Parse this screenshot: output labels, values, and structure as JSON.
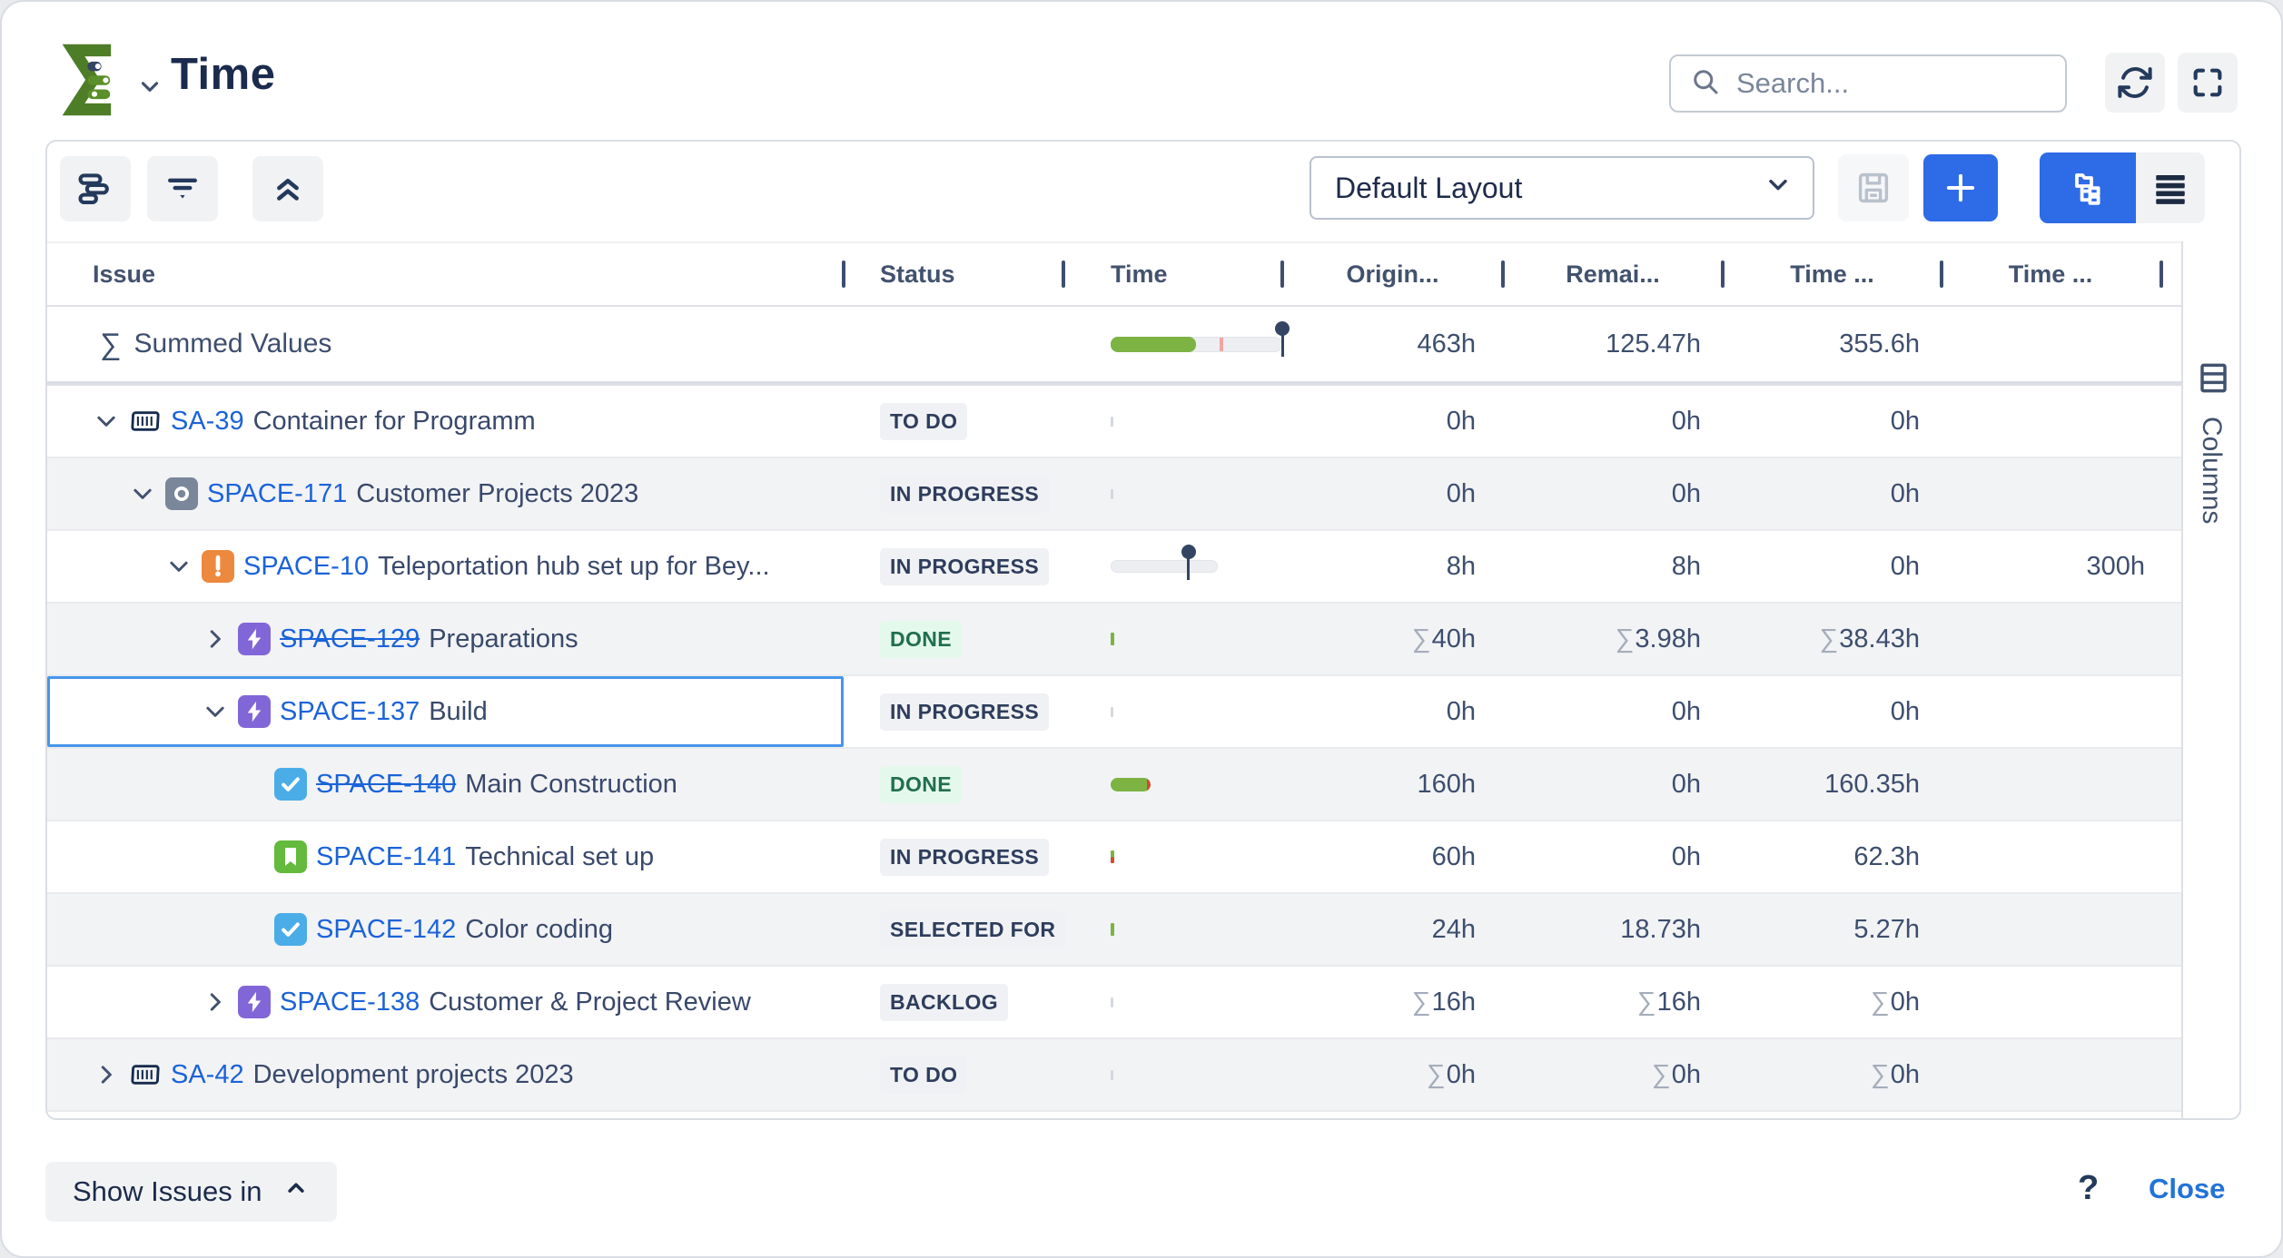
{
  "app": {
    "title": "Time"
  },
  "search": {
    "placeholder": "Search..."
  },
  "toolbar": {
    "layout": "Default Layout"
  },
  "columns": {
    "issue": "Issue",
    "status": "Status",
    "time": "Time",
    "original": "Origin...",
    "remaining": "Remai...",
    "time_spent": "Time ...",
    "time_extra": "Time ..."
  },
  "summed_row": {
    "sigma": "∑",
    "label": "Summed Values",
    "original": "463h",
    "remaining": "125.47h",
    "time_spent": "355.6h"
  },
  "rows": [
    {
      "level": 0,
      "chevron": "down",
      "icon": "container",
      "key": "SA-39",
      "struck": false,
      "summary": "Container for Programm",
      "status": "TO DO",
      "status_variant": "default",
      "bar": "tick",
      "original": "0h",
      "remaining": "0h",
      "time_spent": "0h",
      "time_extra": "",
      "selected": false
    },
    {
      "level": 1,
      "chevron": "down",
      "icon": "program",
      "key": "SPACE-171",
      "struck": false,
      "summary": "Customer Projects 2023",
      "status": "IN PROGRESS",
      "status_variant": "default",
      "bar": "tick",
      "original": "0h",
      "remaining": "0h",
      "time_spent": "0h",
      "time_extra": "",
      "selected": false
    },
    {
      "level": 2,
      "chevron": "down",
      "icon": "alert",
      "key": "SPACE-10",
      "struck": false,
      "summary": "Teleportation hub set up for Bey...",
      "status": "IN PROGRESS",
      "status_variant": "default",
      "bar": "pin-track",
      "original": "8h",
      "remaining": "8h",
      "time_spent": "0h",
      "time_extra": "300h",
      "selected": false
    },
    {
      "level": 3,
      "chevron": "right",
      "icon": "epic",
      "key": "SPACE-129",
      "struck": true,
      "summary": "Preparations",
      "status": "DONE",
      "status_variant": "done",
      "bar": "tick-green",
      "original": "∑40h",
      "remaining": "∑3.98h",
      "time_spent": "∑38.43h",
      "time_extra": "",
      "selected": false
    },
    {
      "level": 3,
      "chevron": "down",
      "icon": "epic",
      "key": "SPACE-137",
      "struck": false,
      "summary": "Build",
      "status": "IN PROGRESS",
      "status_variant": "default",
      "bar": "tick",
      "original": "0h",
      "remaining": "0h",
      "time_spent": "0h",
      "time_extra": "",
      "selected": true
    },
    {
      "level": 4,
      "chevron": "none",
      "icon": "task",
      "key": "SPACE-140",
      "struck": true,
      "summary": "Main Construction",
      "status": "DONE",
      "status_variant": "done",
      "bar": "pill-green",
      "original": "160h",
      "remaining": "0h",
      "time_spent": "160.35h",
      "time_extra": "",
      "selected": false
    },
    {
      "level": 4,
      "chevron": "none",
      "icon": "story",
      "key": "SPACE-141",
      "struck": false,
      "summary": "Technical set up",
      "status": "IN PROGRESS",
      "status_variant": "default",
      "bar": "tick-greenred",
      "original": "60h",
      "remaining": "0h",
      "time_spent": "62.3h",
      "time_extra": "",
      "selected": false
    },
    {
      "level": 4,
      "chevron": "none",
      "icon": "task",
      "key": "SPACE-142",
      "struck": false,
      "summary": "Color coding",
      "status": "SELECTED FOR",
      "status_variant": "default",
      "bar": "tick-green",
      "original": "24h",
      "remaining": "18.73h",
      "time_spent": "5.27h",
      "time_extra": "",
      "selected": false
    },
    {
      "level": 3,
      "chevron": "right",
      "icon": "epic",
      "key": "SPACE-138",
      "struck": false,
      "summary": "Customer & Project Review",
      "status": "BACKLOG",
      "status_variant": "default",
      "bar": "tick",
      "original": "∑16h",
      "remaining": "∑16h",
      "time_spent": "∑0h",
      "time_extra": "",
      "selected": false
    },
    {
      "level": 0,
      "chevron": "right",
      "icon": "container",
      "key": "SA-42",
      "struck": false,
      "summary": "Development projects 2023",
      "status": "TO DO",
      "status_variant": "default",
      "bar": "tick",
      "original": "∑0h",
      "remaining": "∑0h",
      "time_spent": "∑0h",
      "time_extra": "",
      "selected": false
    }
  ],
  "columns_tab": {
    "label": "Columns"
  },
  "footer": {
    "show_issues_label": "Show Issues in",
    "help": "?",
    "close": "Close"
  },
  "colors": {
    "accent": "#2e6be6",
    "link": "#1b63d9",
    "green": "#7cb342"
  }
}
